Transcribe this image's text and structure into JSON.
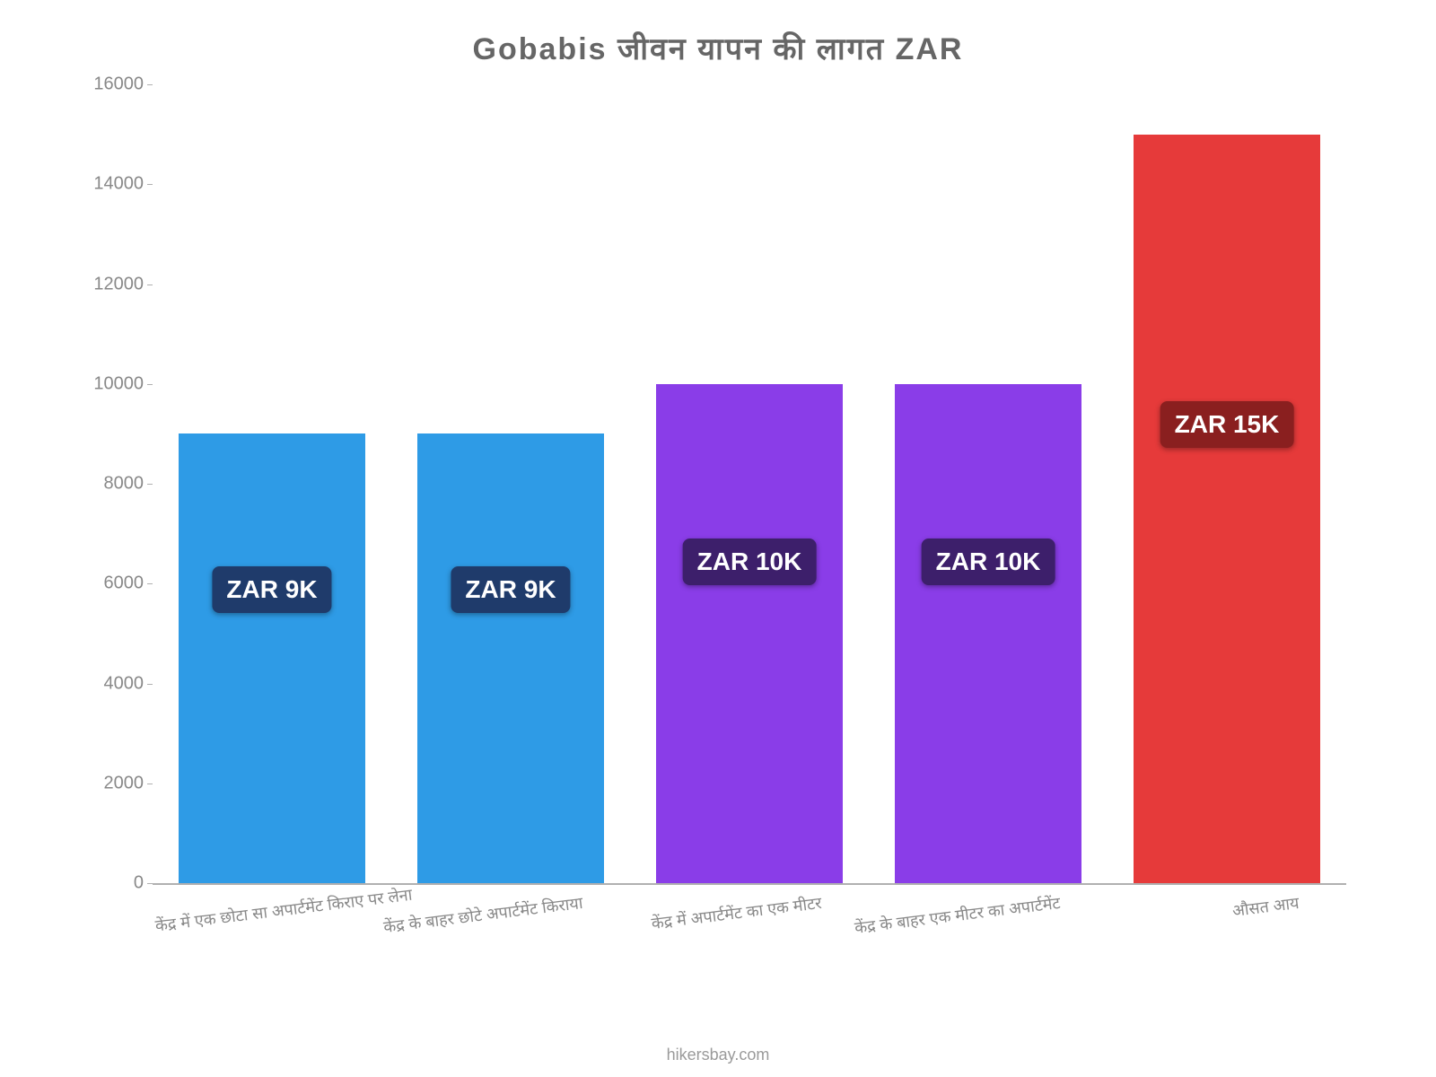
{
  "chart": {
    "type": "bar",
    "title": "Gobabis जीवन    यापन    की    लागत    ZAR",
    "title_fontsize": 34,
    "title_color": "#666666",
    "background_color": "#ffffff",
    "axis_color": "#b0b0b0",
    "ylabel_color": "#888888",
    "xlabel_color": "#888888",
    "xlabel_fontsize": 18,
    "xlabel_rotate_deg": -7,
    "ylim": [
      0,
      16000
    ],
    "ytick_step": 2000,
    "yticks": [
      0,
      2000,
      4000,
      6000,
      8000,
      10000,
      12000,
      14000,
      16000
    ],
    "categories": [
      "केंद्र में एक छोटा सा अपार्टमेंट किराए पर लेना",
      "केंद्र के बाहर छोटे अपार्टमेंट किराया",
      "केंद्र में अपार्टमेंट का एक मीटर",
      "केंद्र के बाहर एक मीटर का अपार्टमेंट",
      "औसत आय"
    ],
    "values": [
      9000,
      9000,
      10000,
      10000,
      15000
    ],
    "value_labels": [
      "ZAR 9K",
      "ZAR 9K",
      "ZAR 10K",
      "ZAR 10K",
      "ZAR 15K"
    ],
    "bar_colors": [
      "#2e9be6",
      "#2e9be6",
      "#8a3de8",
      "#8a3de8",
      "#e63a3a"
    ],
    "badge_bg_colors": [
      "#1f3b6b",
      "#1f3b6b",
      "#3d1f6b",
      "#3d1f6b",
      "#8a1f1f"
    ],
    "badge_text_color": "#ffffff",
    "badge_fontsize": 28,
    "bar_width_ratio": 0.78,
    "source_credit": "hikersbay.com"
  }
}
